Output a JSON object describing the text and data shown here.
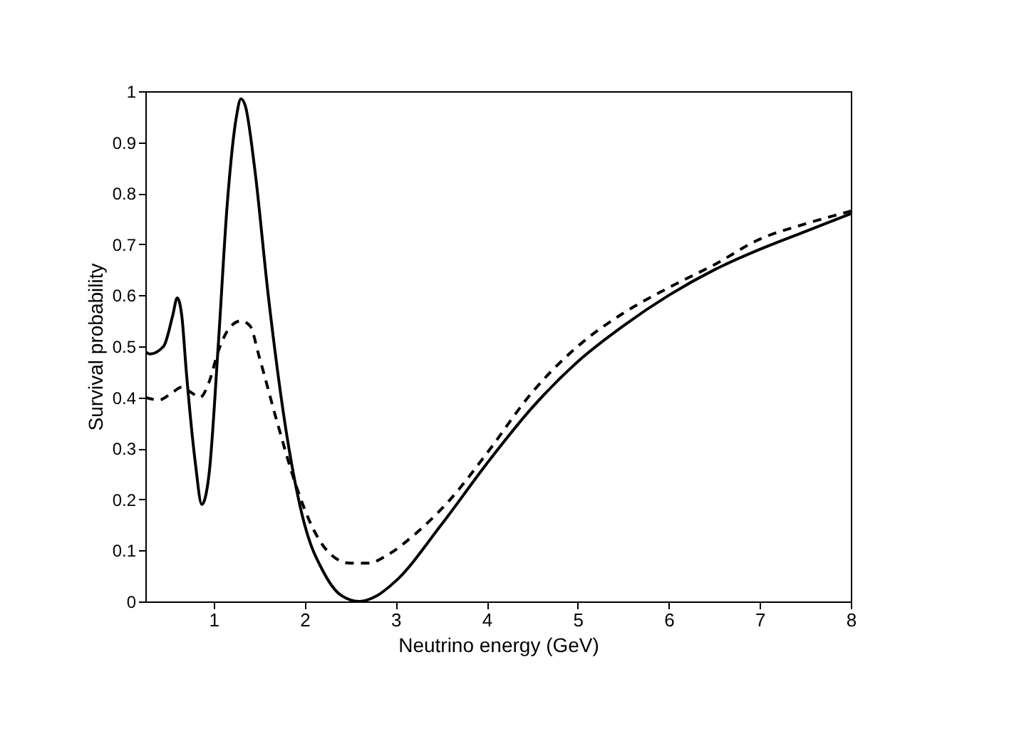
{
  "chart_data": {
    "type": "line",
    "xlabel": "Neutrino energy (GeV)",
    "ylabel": "Survival probability",
    "xlim": [
      0.25,
      8
    ],
    "xticks": [
      1,
      2,
      3,
      4,
      5,
      6,
      7,
      8
    ],
    "ylim": [
      0,
      1
    ],
    "yticks": [
      0,
      0.1,
      0.2,
      0.3,
      0.4,
      0.5,
      0.6,
      0.7,
      0.8,
      0.9,
      1
    ],
    "grid": false,
    "series": [
      {
        "color": "#000000",
        "line_style": "solid",
        "x": [
          0.25,
          0.3,
          0.45,
          0.55,
          0.6,
          0.65,
          0.7,
          0.8,
          0.87,
          0.95,
          1.05,
          1.15,
          1.25,
          1.3,
          1.35,
          1.45,
          1.6,
          1.8,
          2.0,
          2.2,
          2.4,
          2.6,
          2.8,
          3.0,
          3.5,
          4.0,
          4.5,
          5.0,
          5.5,
          6.0,
          6.5,
          7.0,
          7.5,
          8.0
        ],
        "values": [
          0.49,
          0.485,
          0.5,
          0.56,
          0.595,
          0.56,
          0.45,
          0.27,
          0.19,
          0.25,
          0.5,
          0.78,
          0.95,
          0.985,
          0.97,
          0.85,
          0.6,
          0.33,
          0.15,
          0.06,
          0.012,
          0.0,
          0.012,
          0.04,
          0.15,
          0.27,
          0.38,
          0.47,
          0.54,
          0.6,
          0.65,
          0.69,
          0.725,
          0.76
        ]
      },
      {
        "color": "#000000",
        "line_style": "dashed",
        "x": [
          0.25,
          0.4,
          0.55,
          0.65,
          0.75,
          0.85,
          0.95,
          1.05,
          1.15,
          1.3,
          1.4,
          1.5,
          1.7,
          1.9,
          2.1,
          2.3,
          2.5,
          2.7,
          2.9,
          3.2,
          3.6,
          4.0,
          4.5,
          5.0,
          5.5,
          6.0,
          6.5,
          7.0,
          7.5,
          8.0
        ],
        "values": [
          0.4,
          0.395,
          0.41,
          0.42,
          0.41,
          0.4,
          0.43,
          0.49,
          0.53,
          0.55,
          0.54,
          0.48,
          0.35,
          0.23,
          0.14,
          0.09,
          0.075,
          0.075,
          0.09,
          0.13,
          0.2,
          0.29,
          0.41,
          0.5,
          0.565,
          0.615,
          0.66,
          0.71,
          0.74,
          0.765
        ]
      }
    ]
  }
}
